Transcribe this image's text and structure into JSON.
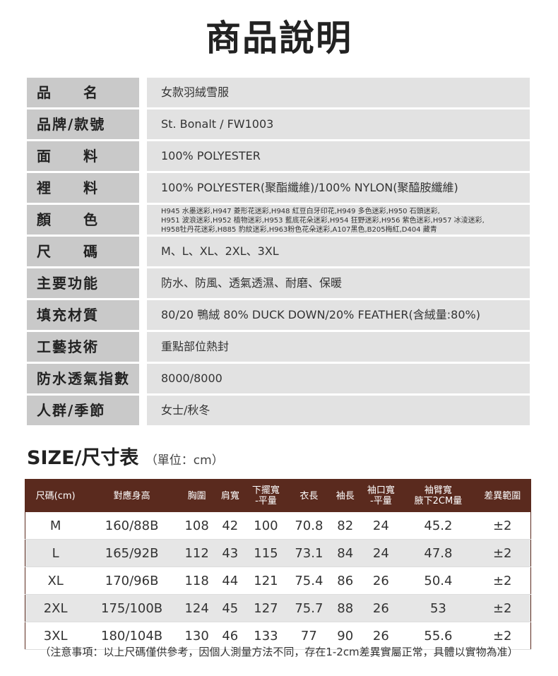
{
  "title": "商品說明",
  "specs": [
    {
      "label": "品　　名",
      "value": "女款羽絨雪服"
    },
    {
      "label": "品牌/款號",
      "value": "St. Bonalt / FW1003"
    },
    {
      "label": "面　　料",
      "value": "100% POLYESTER"
    },
    {
      "label": "裡　　料",
      "value": "100% POLYESTER(聚酯纖維)/100% NYLON(聚醯胺纖維)"
    },
    {
      "label": "顏　　色",
      "value": "H945 水墨迷彩,H947 菱形花迷彩,H948 紅豆白牙印花,H949 多色迷彩,H950 石頭迷彩,\nH951 波浪迷彩,H952 植物迷彩,H953 藍底花朵迷彩,H954 狂野迷彩,H956 紫色迷彩,H957 冰淩迷彩,\nH958牡丹花迷彩,H885 豹紋迷彩,H963粉色花朵迷彩,A107黑色,B205梅紅,D404 藏青"
    },
    {
      "label": "尺　　碼",
      "value": "M、L、XL、2XL、3XL"
    },
    {
      "label": "主要功能",
      "value": "防水、防風、透氣透濕、耐磨、保暖"
    },
    {
      "label": "填充材質",
      "value": "80/20 鴨絨  80% DUCK DOWN/20% FEATHER(含絨量:80%)"
    },
    {
      "label": "工藝技術",
      "value": "重點部位熱封"
    },
    {
      "label": "防水透氣指數",
      "value": "8000/8000"
    },
    {
      "label": "人群/季節",
      "value": "女士/秋冬"
    }
  ],
  "size": {
    "title": "SIZE/尺寸表",
    "unit": "（單位：cm）",
    "headers": [
      "尺碼(cm)",
      "對應身高",
      "胸圍",
      "肩寬",
      "下擺寬\n-平量",
      "衣長",
      "袖長",
      "袖口寬\n-平量",
      "袖臂寬\n腋下2CM量",
      "差異範圍"
    ],
    "rows": [
      [
        "M",
        "160/88B",
        "108",
        "42",
        "100",
        "70.8",
        "82",
        "24",
        "45.2",
        "±2"
      ],
      [
        "L",
        "165/92B",
        "112",
        "43",
        "115",
        "73.1",
        "84",
        "24",
        "47.8",
        "±2"
      ],
      [
        "XL",
        "170/96B",
        "118",
        "44",
        "121",
        "75.4",
        "86",
        "26",
        "50.4",
        "±2"
      ],
      [
        "2XL",
        "175/100B",
        "124",
        "45",
        "127",
        "75.7",
        "88",
        "26",
        "53",
        "±2"
      ],
      [
        "3XL",
        "180/104B",
        "130",
        "46",
        "133",
        "77",
        "90",
        "26",
        "55.6",
        "±2"
      ]
    ]
  },
  "note": "（注意事項：以上尺碼僅供參考，因個人測量方法不同，存在1-2cm差異實屬正常，具體以實物為准）",
  "colors": {
    "header_bg": "#5a2a1e",
    "label_bg": "#c9c9c9",
    "value_bg": "#e2e2e2"
  }
}
